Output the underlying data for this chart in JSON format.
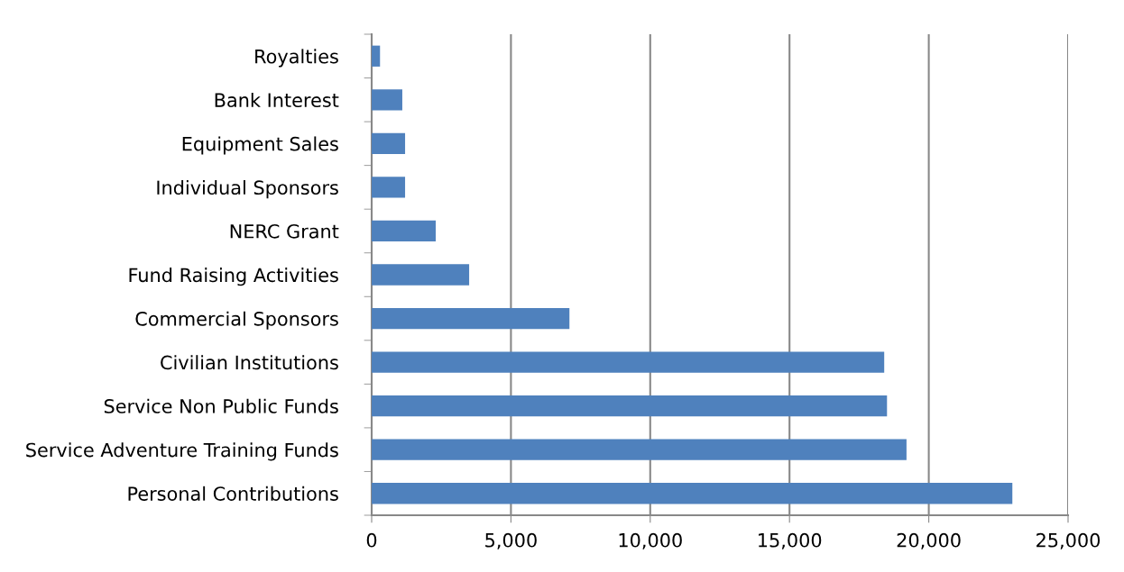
{
  "chart_data": {
    "type": "bar",
    "orientation": "horizontal",
    "categories": [
      "Royalties",
      "Bank Interest",
      "Equipment Sales",
      "Individual Sponsors",
      "NERC Grant",
      "Fund Raising Activities",
      "Commercial Sponsors",
      "Civilian Institutions",
      "Service Non Public Funds",
      "Service Adventure Training Funds",
      "Personal Contributions"
    ],
    "values": [
      300,
      1100,
      1200,
      1200,
      2300,
      3500,
      7100,
      18400,
      18500,
      19200,
      23000
    ],
    "color": "#4f81bd",
    "xlim": [
      0,
      25000
    ],
    "xticks": [
      0,
      {
        "value": 5000,
        "label": "5,000"
      },
      {
        "value": 10000,
        "label": "10,000"
      },
      {
        "value": 15000,
        "label": "15,000"
      },
      {
        "value": 20000,
        "label": "20,000"
      },
      {
        "value": 25000,
        "label": "25,000"
      }
    ],
    "grid": "x"
  }
}
